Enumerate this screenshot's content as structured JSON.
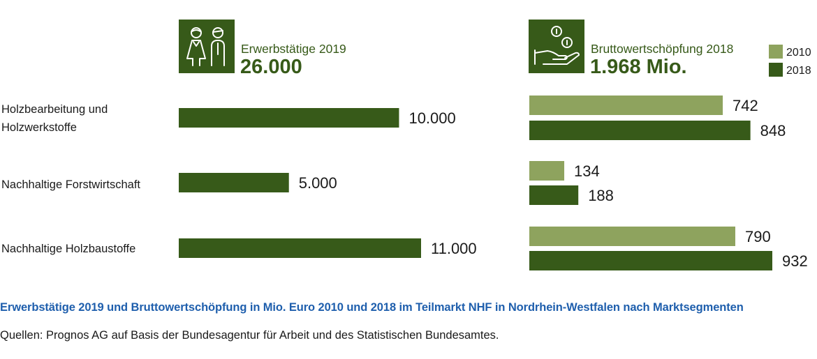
{
  "chart_data": [
    {
      "type": "bar",
      "orientation": "horizontal",
      "icon": "people-icon",
      "header_label": "Erwerbstätige 2019",
      "header_value": "26.000",
      "categories": [
        "Holzbearbeitung und Holzwerkstoffe",
        "Nachhaltige Forstwirtschaft",
        "Nachhaltige Holzbaustoffe"
      ],
      "category_lines": [
        [
          "Holzbearbeitung und",
          "Holzwerkstoffe"
        ],
        [
          "Nachhaltige Forstwirtschaft"
        ],
        [
          "Nachhaltige Holzbaustoffe"
        ]
      ],
      "series": [
        {
          "values": [
            10000,
            5000,
            11000
          ],
          "value_labels": [
            "10.000",
            "5.000",
            "11.000"
          ],
          "color": "#375a19"
        }
      ]
    },
    {
      "type": "bar",
      "orientation": "horizontal",
      "icon": "hand-coins-icon",
      "header_label": "Bruttowertschöpfung 2018",
      "header_value": "1.968 Mio.",
      "categories": [
        "Holzbearbeitung und Holzwerkstoffe",
        "Nachhaltige Forstwirtschaft",
        "Nachhaltige Holzbaustoffe"
      ],
      "legend_position": "top-right",
      "series": [
        {
          "name": "2010",
          "values": [
            742,
            134,
            790
          ],
          "value_labels": [
            "742",
            "134",
            "790"
          ],
          "color": "#8ea35e"
        },
        {
          "name": "2018",
          "values": [
            848,
            188,
            932
          ],
          "value_labels": [
            "848",
            "188",
            "932"
          ],
          "color": "#375a19"
        }
      ]
    }
  ],
  "caption": "Erwerbstätige 2019 und Bruttowertschöpfung in Mio. Euro 2010 und 2018 im Teilmarkt NHF in Nordrhein-Westfalen nach Marktsegmenten",
  "source": "Quellen: Prognos AG auf Basis der Bundesagentur für Arbeit und des Statistischen Bundesamtes."
}
